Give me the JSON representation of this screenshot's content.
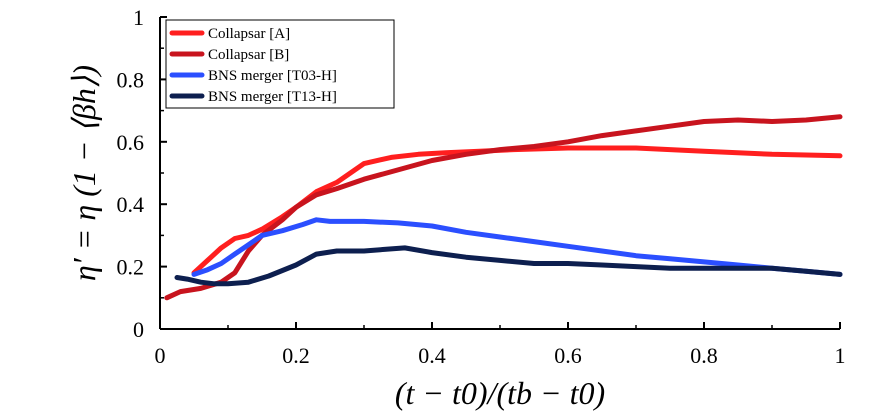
{
  "chart_data": {
    "type": "line",
    "title": "",
    "xlabel": "(t − t0)/(tb − t0)",
    "ylabel": "η′ = η (1 − ⟨βh⟩)",
    "xlim": [
      0,
      1
    ],
    "ylim": [
      0,
      1
    ],
    "x_ticks": [
      0,
      0.2,
      0.4,
      0.6,
      0.8,
      1
    ],
    "x_tick_labels": [
      "0",
      "0.2",
      "0.4",
      "0.6",
      "0.8",
      "1"
    ],
    "y_ticks": [
      0,
      0.2,
      0.4,
      0.6,
      0.8,
      1
    ],
    "y_tick_labels": [
      "0",
      "0.2",
      "0.4",
      "0.6",
      "0.8",
      "1"
    ],
    "grid": false,
    "legend_position": "top-left",
    "series": [
      {
        "name": "Collapsar [A]",
        "color": "#ff1f1f",
        "x": [
          0.05,
          0.07,
          0.09,
          0.11,
          0.13,
          0.15,
          0.18,
          0.2,
          0.23,
          0.26,
          0.3,
          0.34,
          0.38,
          0.42,
          0.47,
          0.52,
          0.6,
          0.7,
          0.8,
          0.9,
          1.0
        ],
        "y": [
          0.18,
          0.22,
          0.26,
          0.29,
          0.3,
          0.32,
          0.36,
          0.39,
          0.44,
          0.47,
          0.53,
          0.55,
          0.56,
          0.565,
          0.57,
          0.575,
          0.58,
          0.58,
          0.57,
          0.56,
          0.555
        ]
      },
      {
        "name": "Collapsar [B]",
        "color": "#c8141e",
        "x": [
          0.01,
          0.03,
          0.06,
          0.09,
          0.11,
          0.13,
          0.15,
          0.18,
          0.2,
          0.23,
          0.26,
          0.3,
          0.35,
          0.4,
          0.45,
          0.5,
          0.55,
          0.6,
          0.65,
          0.7,
          0.75,
          0.8,
          0.85,
          0.9,
          0.95,
          1.0
        ],
        "y": [
          0.1,
          0.12,
          0.13,
          0.15,
          0.18,
          0.25,
          0.3,
          0.35,
          0.39,
          0.43,
          0.45,
          0.48,
          0.51,
          0.54,
          0.56,
          0.575,
          0.585,
          0.6,
          0.62,
          0.635,
          0.65,
          0.665,
          0.67,
          0.665,
          0.67,
          0.68
        ]
      },
      {
        "name": "BNS merger [T03-H]",
        "color": "#2b4fff",
        "x": [
          0.05,
          0.07,
          0.09,
          0.11,
          0.13,
          0.15,
          0.18,
          0.21,
          0.23,
          0.25,
          0.3,
          0.35,
          0.4,
          0.45,
          0.5,
          0.55,
          0.6,
          0.65,
          0.7,
          0.75,
          0.8,
          0.85,
          0.9,
          0.95,
          1.0
        ],
        "y": [
          0.175,
          0.19,
          0.21,
          0.24,
          0.27,
          0.3,
          0.315,
          0.335,
          0.35,
          0.345,
          0.345,
          0.34,
          0.33,
          0.31,
          0.295,
          0.28,
          0.265,
          0.25,
          0.235,
          0.225,
          0.215,
          0.205,
          0.195,
          0.185,
          0.175
        ]
      },
      {
        "name": "BNS merger [T13-H]",
        "color": "#0d1f4f",
        "x": [
          0.025,
          0.04,
          0.06,
          0.08,
          0.1,
          0.13,
          0.16,
          0.2,
          0.23,
          0.26,
          0.3,
          0.33,
          0.36,
          0.4,
          0.45,
          0.5,
          0.55,
          0.6,
          0.65,
          0.7,
          0.75,
          0.8,
          0.85,
          0.9,
          0.95,
          1.0
        ],
        "y": [
          0.165,
          0.16,
          0.15,
          0.145,
          0.145,
          0.15,
          0.17,
          0.205,
          0.24,
          0.25,
          0.25,
          0.255,
          0.26,
          0.245,
          0.23,
          0.22,
          0.21,
          0.21,
          0.205,
          0.2,
          0.195,
          0.195,
          0.195,
          0.195,
          0.185,
          0.175
        ]
      }
    ]
  }
}
